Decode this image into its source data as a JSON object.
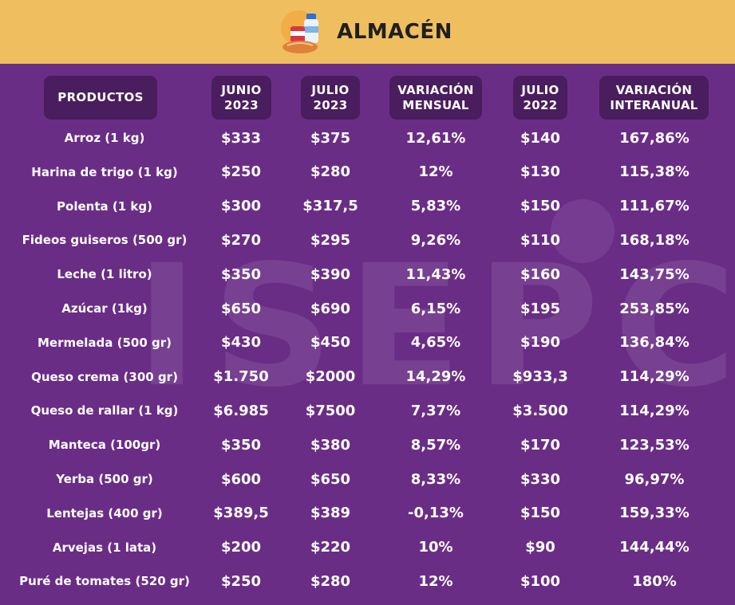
{
  "header": {
    "title": "ALMACÉN",
    "icon": "grocery-icon"
  },
  "watermark": "ISEPCi",
  "colors": {
    "background": "#6a2d86",
    "header": "#efbe5e",
    "pill": "#4a1d5e",
    "text": "#ffffff"
  },
  "table": {
    "columns": [
      {
        "line1": "PRODUCTOS",
        "line2": ""
      },
      {
        "line1": "JUNIO",
        "line2": "2023"
      },
      {
        "line1": "JULIO",
        "line2": "2023"
      },
      {
        "line1": "VARIACIÓN",
        "line2": "MENSUAL"
      },
      {
        "line1": "JULIO",
        "line2": "2022"
      },
      {
        "line1": "VARIACIÓN",
        "line2": "INTERANUAL"
      }
    ],
    "rows": [
      [
        "Arroz (1 kg)",
        "$333",
        "$375",
        "12,61%",
        "$140",
        "167,86%"
      ],
      [
        "Harina de trigo (1 kg)",
        "$250",
        "$280",
        "12%",
        "$130",
        "115,38%"
      ],
      [
        "Polenta (1 kg)",
        "$300",
        "$317,5",
        "5,83%",
        "$150",
        "111,67%"
      ],
      [
        "Fideos guiseros (500 gr)",
        "$270",
        "$295",
        "9,26%",
        "$110",
        "168,18%"
      ],
      [
        "Leche (1 litro)",
        "$350",
        "$390",
        "11,43%",
        "$160",
        "143,75%"
      ],
      [
        "Azúcar (1kg)",
        "$650",
        "$690",
        "6,15%",
        "$195",
        "253,85%"
      ],
      [
        "Mermelada (500 gr)",
        "$430",
        "$450",
        "4,65%",
        "$190",
        "136,84%"
      ],
      [
        "Queso crema (300 gr)",
        "$1.750",
        "$2000",
        "14,29%",
        "$933,3",
        "114,29%"
      ],
      [
        "Queso de rallar (1 kg)",
        "$6.985",
        "$7500",
        "7,37%",
        "$3.500",
        "114,29%"
      ],
      [
        "Manteca (100gr)",
        "$350",
        "$380",
        "8,57%",
        "$170",
        "123,53%"
      ],
      [
        "Yerba (500 gr)",
        "$600",
        "$650",
        "8,33%",
        "$330",
        "96,97%"
      ],
      [
        "Lentejas (400 gr)",
        "$389,5",
        "$389",
        "-0,13%",
        "$150",
        "159,33%"
      ],
      [
        "Arvejas (1 lata)",
        "$200",
        "$220",
        "10%",
        "$90",
        "144,44%"
      ],
      [
        "Puré de tomates (520 gr)",
        "$250",
        "$280",
        "12%",
        "$100",
        "180%"
      ]
    ]
  }
}
